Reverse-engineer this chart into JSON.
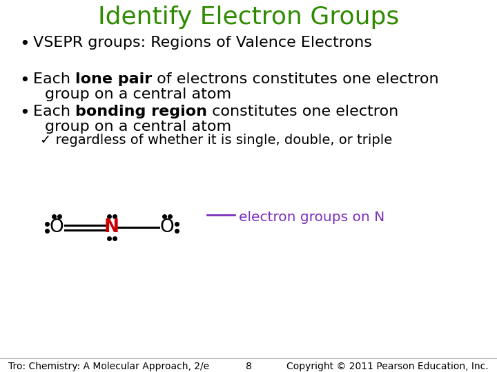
{
  "title": "Identify Electron Groups",
  "title_color": "#2e8b00",
  "title_fontsize": 26,
  "bg_color": "#ffffff",
  "bullet1": "VSEPR groups: Regions of Valence Electrons",
  "checkmark": "✓ regardless of whether it is single, double, or triple",
  "electron_label": "electron groups on N",
  "electron_label_color": "#7b2fbe",
  "footer_left": "Tro: Chemistry: A Molecular Approach, 2/e",
  "footer_center": "8",
  "footer_right": "Copyright © 2011 Pearson Education, Inc.",
  "body_fontsize": 16,
  "footer_fontsize": 10,
  "N_color": "#cc0000",
  "dot_color": "#000000"
}
